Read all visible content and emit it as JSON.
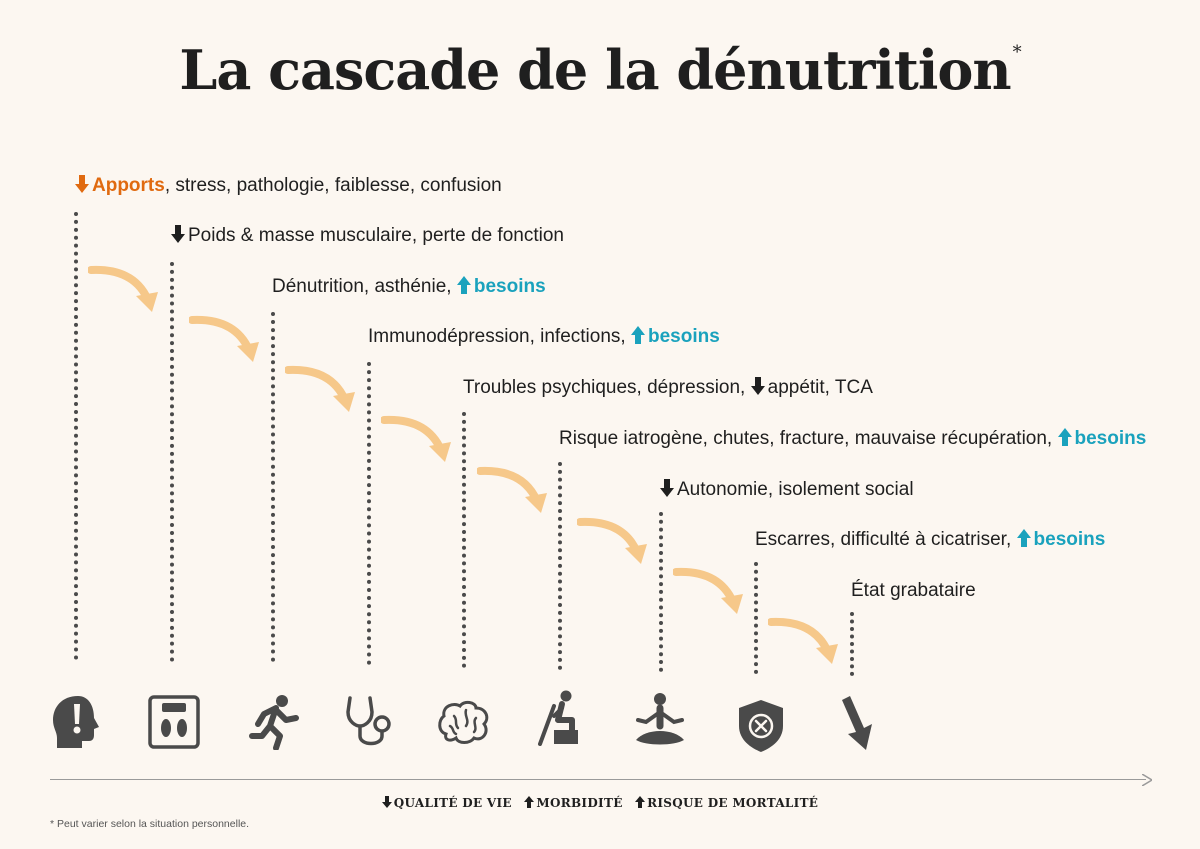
{
  "title": "La cascade de la dénutrition",
  "title_mark": "*",
  "colors": {
    "orange": "#e06a10",
    "teal": "#1aa2bd",
    "dark": "#1f1f1f",
    "curve": "#f6c88a"
  },
  "steps": [
    {
      "arrow": "down-orange",
      "highlight": "Apports",
      "text": ", stress, pathologie, faiblesse, confusion",
      "suffix": ""
    },
    {
      "arrow": "down-dark",
      "highlight": "",
      "text": "Poids & masse musculaire, perte de fonction",
      "suffix": ""
    },
    {
      "arrow": "",
      "highlight": "",
      "text": "Dénutrition, asthénie, ",
      "suffix": "besoins"
    },
    {
      "arrow": "",
      "highlight": "",
      "text": "Immunodépression, infections, ",
      "suffix": "besoins"
    },
    {
      "arrow": "",
      "highlight": "",
      "text": "Troubles psychiques, dépression, ",
      "mid_arrow": "appétit, TCA",
      "suffix": ""
    },
    {
      "arrow": "",
      "highlight": "",
      "text": "Risque iatrogène, chutes, fracture, mauvaise récupération, ",
      "suffix": "besoins"
    },
    {
      "arrow": "down-dark",
      "highlight": "",
      "text": "Autonomie, isolement social",
      "suffix": ""
    },
    {
      "arrow": "",
      "highlight": "",
      "text": "Escarres, difficulté à cicatriser, ",
      "suffix": "besoins"
    },
    {
      "arrow": "",
      "highlight": "",
      "text": "État grabataire",
      "suffix": ""
    }
  ],
  "icons": [
    "head-exclamation-icon",
    "scale-icon",
    "running-person-icon",
    "stethoscope-icon",
    "brain-icon",
    "person-crutch-icon",
    "meditating-person-icon",
    "shield-cross-icon",
    "down-arrow-icon"
  ],
  "legend": [
    {
      "dir": "down",
      "label": "QUALITÉ DE VIE"
    },
    {
      "dir": "up",
      "label": "MORBIDITÉ"
    },
    {
      "dir": "up",
      "label": "RISQUE DE MORTALITÉ"
    }
  ],
  "footnote": "* Peut varier selon la situation personnelle."
}
